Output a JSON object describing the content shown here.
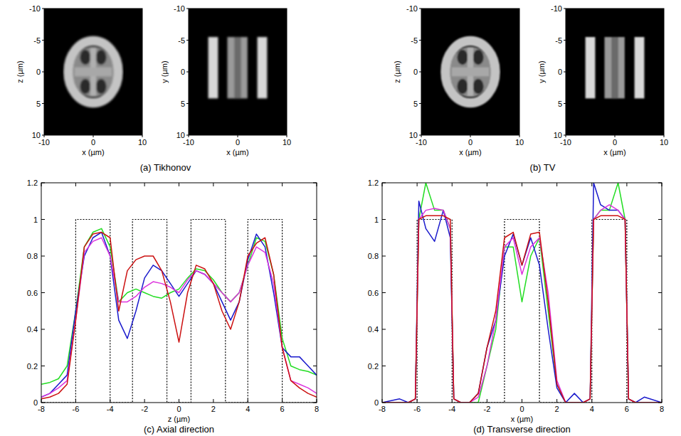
{
  "chart_data": [
    {
      "type": "image",
      "title": "(a) Tikhonov",
      "images": [
        {
          "xlabel": "x (µm)",
          "ylabel": "z (µm)",
          "xlim": [
            -10,
            10
          ],
          "ylim": [
            -10,
            10
          ],
          "xticks": [
            -10,
            0,
            10
          ],
          "yticks": [
            -10,
            -5,
            0,
            5,
            10
          ]
        },
        {
          "xlabel": "x (µm)",
          "ylabel": "y (µm)",
          "xlim": [
            -10,
            10
          ],
          "ylim": [
            -10,
            10
          ],
          "xticks": [
            -10,
            0,
            10
          ],
          "yticks": [
            -10,
            -5,
            0,
            5,
            10
          ]
        }
      ]
    },
    {
      "type": "image",
      "title": "(b) TV",
      "images": [
        {
          "xlabel": "x (µm)",
          "ylabel": "z (µm)",
          "xlim": [
            -10,
            10
          ],
          "ylim": [
            -10,
            10
          ],
          "xticks": [
            -10,
            0,
            10
          ],
          "yticks": [
            -10,
            -5,
            0,
            5,
            10
          ]
        },
        {
          "xlabel": "x (µm)",
          "ylabel": "y (µm)",
          "xlim": [
            -10,
            10
          ],
          "ylim": [
            -10,
            10
          ],
          "xticks": [
            -10,
            0,
            10
          ],
          "yticks": [
            -10,
            -5,
            0,
            5,
            10
          ]
        }
      ]
    },
    {
      "type": "line",
      "title": "(c) Axial direction",
      "xlabel": "z (µm)",
      "xlim": [
        -8,
        8
      ],
      "ylim": [
        0,
        1.2
      ],
      "xticks": [
        -8,
        -6,
        -4,
        -2,
        0,
        2,
        4,
        6,
        8
      ],
      "yticks": [
        0,
        0.2,
        0.4,
        0.6,
        0.8,
        1,
        1.2
      ],
      "grid": false,
      "x": [
        -8,
        -7.5,
        -7,
        -6.5,
        -6,
        -5.5,
        -5,
        -4.5,
        -4,
        -3.5,
        -3,
        -2.5,
        -2,
        -1.5,
        -1,
        -0.5,
        0,
        0.5,
        1,
        1.5,
        2,
        2.5,
        3,
        3.5,
        4,
        4.5,
        5,
        5.5,
        6,
        6.5,
        7,
        7.5,
        8
      ],
      "series": [
        {
          "color": "#000000",
          "line_style": "dotted",
          "x": [
            -8,
            -6,
            -6,
            -4,
            -4,
            -2.7,
            -2.7,
            -0.7,
            -0.7,
            0.7,
            0.7,
            2.7,
            2.7,
            4,
            4,
            6,
            6,
            8
          ],
          "values": [
            0,
            0,
            1,
            1,
            0,
            0,
            1,
            1,
            0,
            0,
            1,
            1,
            0,
            0,
            1,
            1,
            0,
            0
          ]
        },
        {
          "color": "#22dd22",
          "line_style": "solid",
          "values": [
            0.1,
            0.11,
            0.13,
            0.2,
            0.5,
            0.85,
            0.93,
            0.95,
            0.85,
            0.55,
            0.6,
            0.62,
            0.6,
            0.58,
            0.57,
            0.6,
            0.62,
            0.68,
            0.73,
            0.72,
            0.67,
            0.6,
            0.55,
            0.6,
            0.75,
            0.9,
            0.88,
            0.7,
            0.35,
            0.2,
            0.18,
            0.17,
            0.15
          ]
        },
        {
          "color": "#1a1acc",
          "line_style": "solid",
          "values": [
            0.03,
            0.05,
            0.1,
            0.15,
            0.5,
            0.8,
            0.9,
            0.93,
            0.8,
            0.45,
            0.35,
            0.5,
            0.68,
            0.75,
            0.72,
            0.65,
            0.58,
            0.65,
            0.72,
            0.7,
            0.65,
            0.55,
            0.45,
            0.55,
            0.78,
            0.92,
            0.85,
            0.6,
            0.3,
            0.25,
            0.25,
            0.2,
            0.15
          ]
        },
        {
          "color": "#dd33dd",
          "line_style": "solid",
          "values": [
            0.03,
            0.05,
            0.08,
            0.12,
            0.45,
            0.82,
            0.88,
            0.9,
            0.8,
            0.55,
            0.55,
            0.58,
            0.63,
            0.66,
            0.65,
            0.63,
            0.6,
            0.67,
            0.72,
            0.7,
            0.65,
            0.6,
            0.55,
            0.6,
            0.75,
            0.85,
            0.82,
            0.65,
            0.3,
            0.12,
            0.1,
            0.08,
            0.05
          ]
        },
        {
          "color": "#cc1111",
          "line_style": "solid",
          "values": [
            0.02,
            0.03,
            0.05,
            0.1,
            0.45,
            0.85,
            0.92,
            0.93,
            0.9,
            0.5,
            0.72,
            0.78,
            0.8,
            0.8,
            0.72,
            0.55,
            0.33,
            0.6,
            0.75,
            0.73,
            0.65,
            0.5,
            0.4,
            0.55,
            0.8,
            0.87,
            0.9,
            0.7,
            0.3,
            0.12,
            0.08,
            0.05,
            0.03
          ]
        }
      ]
    },
    {
      "type": "line",
      "title": "(d) Transverse direction",
      "xlabel": "x (µm)",
      "xlim": [
        -8,
        8
      ],
      "ylim": [
        0,
        1.2
      ],
      "xticks": [
        -8,
        -6,
        -4,
        -2,
        0,
        2,
        4,
        6,
        8
      ],
      "yticks": [
        0,
        0.2,
        0.4,
        0.6,
        0.8,
        1,
        1.2
      ],
      "grid": false,
      "x": [
        -8,
        -7,
        -6.5,
        -6.1,
        -5.9,
        -5.5,
        -5,
        -4.5,
        -4.1,
        -3.9,
        -3.5,
        -3,
        -2.5,
        -2,
        -1.5,
        -1,
        -0.5,
        0,
        0.5,
        1,
        1.5,
        2,
        2.5,
        3,
        3.5,
        3.9,
        4.1,
        4.5,
        5,
        5.5,
        5.9,
        6.1,
        6.5,
        7,
        8
      ],
      "series": [
        {
          "color": "#000000",
          "line_style": "dotted",
          "x": [
            -8,
            -6,
            -6,
            -4,
            -4,
            -1,
            -1,
            1,
            1,
            4,
            4,
            6,
            6,
            8
          ],
          "values": [
            0,
            0,
            1,
            1,
            0,
            0,
            1,
            1,
            0,
            0,
            1,
            1,
            0,
            0
          ]
        },
        {
          "color": "#22dd22",
          "line_style": "solid",
          "values": [
            0,
            0,
            0,
            0.02,
            1.0,
            1.2,
            1.05,
            1.05,
            0.95,
            0.02,
            0,
            0,
            0,
            0.2,
            0.4,
            0.85,
            0.85,
            0.55,
            0.8,
            0.9,
            0.5,
            0.1,
            0,
            0,
            0,
            0.02,
            1.0,
            1.05,
            1.05,
            1.2,
            1.0,
            0.02,
            0,
            0,
            0
          ]
        },
        {
          "color": "#1a1acc",
          "line_style": "solid",
          "values": [
            0,
            0.02,
            0,
            0.02,
            1.1,
            0.95,
            0.88,
            1.05,
            0.9,
            0.02,
            0,
            0,
            0.05,
            0.3,
            0.45,
            0.8,
            0.92,
            0.75,
            0.9,
            0.75,
            0.4,
            0.08,
            0,
            0.05,
            0,
            0.02,
            1.2,
            1.08,
            1.05,
            1.05,
            1.0,
            0.02,
            0,
            0.03,
            0
          ]
        },
        {
          "color": "#dd33dd",
          "line_style": "solid",
          "values": [
            0,
            0,
            0,
            0.02,
            1.0,
            1.05,
            1.06,
            1.05,
            0.95,
            0.02,
            0,
            0,
            0.03,
            0.2,
            0.45,
            0.85,
            0.9,
            0.7,
            0.85,
            0.9,
            0.6,
            0.12,
            0,
            0,
            0,
            0.02,
            1.0,
            1.05,
            1.08,
            1.05,
            1.0,
            0.02,
            0,
            0,
            0
          ]
        },
        {
          "color": "#cc1111",
          "line_style": "solid",
          "values": [
            0,
            0,
            0,
            0.02,
            1.0,
            1.02,
            1.02,
            1.02,
            1.0,
            0.02,
            0,
            0,
            0.05,
            0.3,
            0.5,
            0.9,
            0.93,
            0.75,
            0.92,
            0.93,
            0.55,
            0.1,
            0,
            0,
            0,
            0.02,
            1.0,
            1.02,
            1.02,
            1.02,
            1.0,
            0.02,
            0,
            0,
            0
          ]
        }
      ]
    }
  ]
}
